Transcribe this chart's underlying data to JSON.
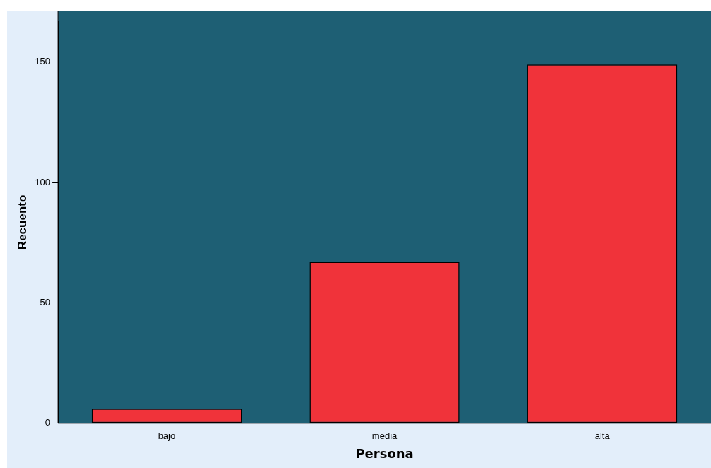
{
  "chart_data": {
    "type": "bar",
    "xlabel": "Persona",
    "ylabel": "Recuento",
    "categories": [
      "bajo",
      "media",
      "alta"
    ],
    "values": [
      6,
      67,
      149
    ],
    "color": "#f0333a",
    "ylim": [
      0,
      167
    ],
    "yticks": [
      0,
      50,
      100,
      150
    ],
    "grid": false,
    "legend": false
  }
}
